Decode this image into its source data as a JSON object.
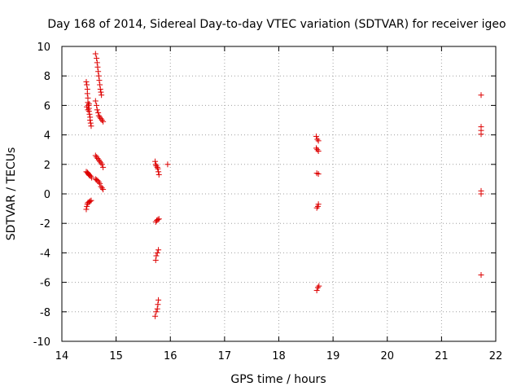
{
  "chart_data": {
    "type": "scatter",
    "title": "Day 168 of 2014, Sidereal Day-to-day VTEC variation (SDTVAR) for receiver igeo",
    "xlabel": "GPS time / hours",
    "ylabel": "SDTVAR / TECUs",
    "xlim": [
      14,
      22
    ],
    "ylim": [
      -10,
      10
    ],
    "xticks": [
      "14",
      "15",
      "16",
      "17",
      "18",
      "19",
      "20",
      "21",
      "22"
    ],
    "yticks": [
      "-10",
      "-8",
      "-6",
      "-4",
      "-2",
      "0",
      "2",
      "4",
      "6",
      "8",
      "10"
    ],
    "grid": true,
    "marker": "+",
    "color": "#dd0000",
    "series": [
      {
        "name": "SDTVAR",
        "points": [
          [
            14.45,
            7.6
          ],
          [
            14.46,
            7.4
          ],
          [
            14.47,
            7.1
          ],
          [
            14.47,
            6.8
          ],
          [
            14.48,
            6.5
          ],
          [
            14.48,
            6.2
          ],
          [
            14.49,
            6.0
          ],
          [
            14.5,
            5.8
          ],
          [
            14.5,
            5.6
          ],
          [
            14.51,
            5.4
          ],
          [
            14.52,
            5.2
          ],
          [
            14.52,
            5.0
          ],
          [
            14.53,
            4.8
          ],
          [
            14.54,
            4.6
          ],
          [
            14.46,
            5.9
          ],
          [
            14.48,
            5.7
          ],
          [
            14.5,
            6.1
          ],
          [
            14.45,
            1.5
          ],
          [
            14.47,
            1.45
          ],
          [
            14.48,
            1.4
          ],
          [
            14.49,
            1.35
          ],
          [
            14.5,
            1.3
          ],
          [
            14.51,
            1.25
          ],
          [
            14.53,
            1.2
          ],
          [
            14.55,
            1.1
          ],
          [
            14.45,
            -1.05
          ],
          [
            14.46,
            -0.85
          ],
          [
            14.47,
            -0.7
          ],
          [
            14.48,
            -0.6
          ],
          [
            14.5,
            -0.55
          ],
          [
            14.52,
            -0.5
          ],
          [
            14.54,
            -0.45
          ],
          [
            14.62,
            9.5
          ],
          [
            14.64,
            9.2
          ],
          [
            14.65,
            8.9
          ],
          [
            14.66,
            8.6
          ],
          [
            14.67,
            8.3
          ],
          [
            14.68,
            8.0
          ],
          [
            14.69,
            7.7
          ],
          [
            14.7,
            7.4
          ],
          [
            14.71,
            7.1
          ],
          [
            14.72,
            6.9
          ],
          [
            14.73,
            6.7
          ],
          [
            14.62,
            6.3
          ],
          [
            14.64,
            6.0
          ],
          [
            14.65,
            5.7
          ],
          [
            14.67,
            5.5
          ],
          [
            14.68,
            5.3
          ],
          [
            14.7,
            5.2
          ],
          [
            14.72,
            5.1
          ],
          [
            14.74,
            5.0
          ],
          [
            14.76,
            4.9
          ],
          [
            14.62,
            2.6
          ],
          [
            14.64,
            2.5
          ],
          [
            14.66,
            2.4
          ],
          [
            14.68,
            2.3
          ],
          [
            14.7,
            2.2
          ],
          [
            14.72,
            2.1
          ],
          [
            14.74,
            2.0
          ],
          [
            14.76,
            1.8
          ],
          [
            14.62,
            1.0
          ],
          [
            14.64,
            0.95
          ],
          [
            14.66,
            0.9
          ],
          [
            14.68,
            0.8
          ],
          [
            14.7,
            0.7
          ],
          [
            14.72,
            0.5
          ],
          [
            14.74,
            0.4
          ],
          [
            14.76,
            0.3
          ],
          [
            15.72,
            2.2
          ],
          [
            15.73,
            2.0
          ],
          [
            15.74,
            1.9
          ],
          [
            15.76,
            1.8
          ],
          [
            15.77,
            1.7
          ],
          [
            15.78,
            1.5
          ],
          [
            15.79,
            1.3
          ],
          [
            15.95,
            2.0
          ],
          [
            15.73,
            -1.9
          ],
          [
            15.75,
            -1.8
          ],
          [
            15.77,
            -1.75
          ],
          [
            15.79,
            -1.7
          ],
          [
            15.73,
            -4.5
          ],
          [
            15.74,
            -4.2
          ],
          [
            15.76,
            -4.0
          ],
          [
            15.78,
            -3.8
          ],
          [
            15.72,
            -8.3
          ],
          [
            15.74,
            -8.0
          ],
          [
            15.76,
            -7.8
          ],
          [
            15.77,
            -7.5
          ],
          [
            15.78,
            -7.2
          ],
          [
            18.69,
            3.9
          ],
          [
            18.71,
            3.7
          ],
          [
            18.73,
            3.6
          ],
          [
            18.69,
            3.1
          ],
          [
            18.71,
            3.0
          ],
          [
            18.73,
            2.9
          ],
          [
            18.7,
            1.4
          ],
          [
            18.73,
            1.35
          ],
          [
            18.7,
            -0.95
          ],
          [
            18.72,
            -0.85
          ],
          [
            18.73,
            -0.7
          ],
          [
            18.7,
            -6.55
          ],
          [
            18.72,
            -6.35
          ],
          [
            18.74,
            -6.25
          ],
          [
            21.73,
            6.7
          ],
          [
            21.73,
            4.55
          ],
          [
            21.73,
            4.3
          ],
          [
            21.73,
            4.05
          ],
          [
            21.73,
            0.2
          ],
          [
            21.73,
            0.0
          ],
          [
            21.73,
            -5.5
          ]
        ]
      }
    ]
  }
}
